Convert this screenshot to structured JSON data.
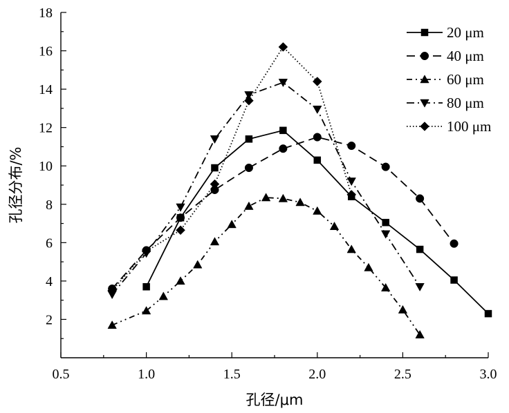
{
  "chart_data": {
    "type": "line",
    "xlabel": "孔径/μm",
    "ylabel": "孔径分布/%",
    "xlim": [
      0.5,
      3.0
    ],
    "ylim": [
      0,
      18
    ],
    "xticks": [
      0.5,
      1.0,
      1.5,
      2.0,
      2.5,
      3.0
    ],
    "xtick_labels": [
      "0.5",
      "1.0",
      "1.5",
      "2.0",
      "2.5",
      "3.0"
    ],
    "yticks": [
      2,
      4,
      6,
      8,
      10,
      12,
      14,
      16,
      18
    ],
    "ytick_labels": [
      "2",
      "4",
      "6",
      "8",
      "10",
      "12",
      "14",
      "16",
      "18"
    ],
    "grid": false,
    "legend_position": "top-right",
    "series": [
      {
        "name": "20 μm",
        "line_style": "solid",
        "marker": "square",
        "x": [
          1.0,
          1.2,
          1.4,
          1.6,
          1.8,
          2.0,
          2.2,
          2.4,
          2.6,
          2.8,
          3.0
        ],
        "y": [
          3.7,
          7.3,
          9.9,
          11.4,
          11.85,
          10.3,
          8.4,
          7.05,
          5.65,
          4.05,
          2.3
        ]
      },
      {
        "name": "40 μm",
        "line_style": "dashed",
        "marker": "circle",
        "x": [
          0.8,
          1.0,
          1.2,
          1.4,
          1.6,
          1.8,
          2.0,
          2.2,
          2.4,
          2.6,
          2.8
        ],
        "y": [
          3.6,
          5.6,
          7.3,
          8.75,
          9.9,
          10.9,
          11.5,
          11.05,
          9.95,
          8.3,
          5.95
        ]
      },
      {
        "name": "60 μm",
        "line_style": "dash-dot-dot",
        "marker": "triangle-up",
        "x": [
          0.8,
          1.0,
          1.1,
          1.2,
          1.3,
          1.4,
          1.5,
          1.6,
          1.7,
          1.8,
          1.9,
          2.0,
          2.1,
          2.2,
          2.3,
          2.4,
          2.5,
          2.6
        ],
        "y": [
          1.7,
          2.45,
          3.2,
          4.0,
          4.85,
          6.05,
          6.95,
          7.9,
          8.35,
          8.3,
          8.1,
          7.65,
          6.85,
          5.65,
          4.7,
          3.65,
          2.5,
          1.2
        ]
      },
      {
        "name": "80 μm",
        "line_style": "dash-dot",
        "marker": "triangle-down",
        "x": [
          0.8,
          1.0,
          1.2,
          1.4,
          1.6,
          1.8,
          2.0,
          2.2,
          2.4,
          2.6
        ],
        "y": [
          3.3,
          5.45,
          7.85,
          11.4,
          13.7,
          14.35,
          12.95,
          9.2,
          6.45,
          3.7
        ]
      },
      {
        "name": "100 μm",
        "line_style": "dotted",
        "marker": "diamond",
        "x": [
          0.8,
          1.0,
          1.2,
          1.4,
          1.6,
          1.8,
          2.0,
          2.2
        ],
        "y": [
          3.5,
          5.55,
          6.65,
          9.05,
          13.4,
          16.2,
          14.4,
          8.5
        ]
      }
    ]
  },
  "colors": {
    "ink": "#000000",
    "background": "#ffffff"
  }
}
